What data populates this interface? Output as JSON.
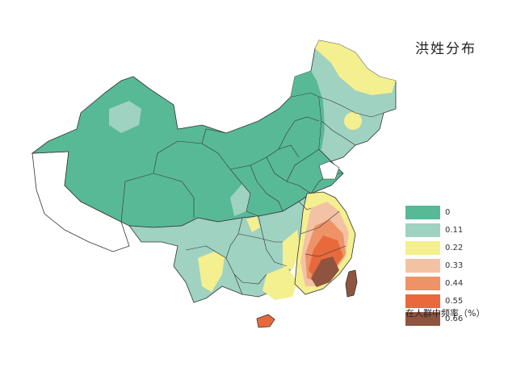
{
  "map": {
    "title": "洪姓分布",
    "legend_caption": "在人群中频率（%）",
    "legend": [
      {
        "label": "0",
        "color": "#58b996"
      },
      {
        "label": "0.11",
        "color": "#9fd2c1"
      },
      {
        "label": "0.22",
        "color": "#f4ef8f"
      },
      {
        "label": "0.33",
        "color": "#f3c2a4"
      },
      {
        "label": "0.44",
        "color": "#ee9367"
      },
      {
        "label": "0.55",
        "color": "#e8693b"
      },
      {
        "label": "0.66",
        "color": "#8e5440"
      }
    ]
  }
}
